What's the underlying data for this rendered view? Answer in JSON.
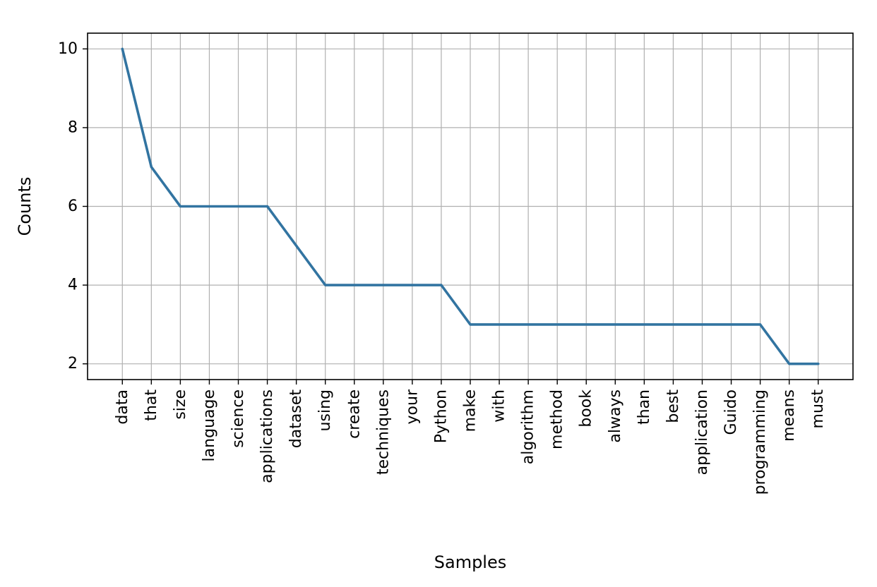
{
  "chart_data": {
    "type": "line",
    "title": "",
    "xlabel": "Samples",
    "ylabel": "Counts",
    "categories": [
      "data",
      "that",
      "size",
      "language",
      "science",
      "applications",
      "dataset",
      "using",
      "create",
      "techniques",
      "your",
      "Python",
      "make",
      "with",
      "algorithm",
      "method",
      "book",
      "always",
      "than",
      "best",
      "application",
      "Guido",
      "programming",
      "means",
      "must"
    ],
    "values": [
      10,
      7,
      6,
      6,
      6,
      6,
      5,
      4,
      4,
      4,
      4,
      4,
      3,
      3,
      3,
      3,
      3,
      3,
      3,
      3,
      3,
      3,
      3,
      2,
      2
    ],
    "yticks": [
      2,
      4,
      6,
      8,
      10
    ],
    "ylim": [
      1.6,
      10.4
    ],
    "grid": true,
    "legend": "none",
    "line_color": "#3274a1"
  }
}
